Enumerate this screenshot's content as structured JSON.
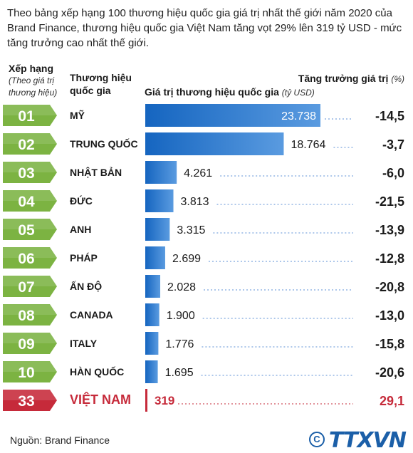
{
  "intro": "Theo bảng xếp hạng 100 thương hiệu quốc gia giá trị nhất thế giới năm 2020 của Brand Finance, thương hiệu quốc gia Việt Nam tăng vọt 29% lên 319 tỷ USD - mức tăng trưởng cao nhất thế giới.",
  "headers": {
    "rank_title": "Xếp hạng",
    "rank_sub": "(Theo giá trị thương hiệu)",
    "brand_title": "Thương hiệu quốc gia",
    "value_title": "Giá trị thương hiệu quốc gia",
    "value_unit": "(tỷ USD)",
    "growth_title": "Tăng trưởng giá trị",
    "growth_unit": "(%)"
  },
  "source": "Nguồn: Brand Finance",
  "logo": {
    "copyright": "C",
    "word": "TTXVN"
  },
  "colors": {
    "rank_green": "#7cb342",
    "rank_green_dark": "#558b2f",
    "rank_red": "#c62a3a",
    "bar_blue": "#1565c0",
    "bar_blue_light": "#5a9be0",
    "highlight_red": "#c62a3a"
  },
  "chart_data": {
    "type": "bar",
    "orientation": "horizontal",
    "rows": [
      {
        "rank": "01",
        "country": "MỸ",
        "value": 23738,
        "value_label": "23.738",
        "growth": "-14,5"
      },
      {
        "rank": "02",
        "country": "TRUNG QUỐC",
        "value": 18764,
        "value_label": "18.764",
        "growth": "-3,7"
      },
      {
        "rank": "03",
        "country": "NHẬT BẢN",
        "value": 4261,
        "value_label": "4.261",
        "growth": "-6,0"
      },
      {
        "rank": "04",
        "country": "ĐỨC",
        "value": 3813,
        "value_label": "3.813",
        "growth": "-21,5"
      },
      {
        "rank": "05",
        "country": "ANH",
        "value": 3315,
        "value_label": "3.315",
        "growth": "-13,9"
      },
      {
        "rank": "06",
        "country": "PHÁP",
        "value": 2699,
        "value_label": "2.699",
        "growth": "-12,8"
      },
      {
        "rank": "07",
        "country": "ẤN ĐỘ",
        "value": 2028,
        "value_label": "2.028",
        "growth": "-20,8"
      },
      {
        "rank": "08",
        "country": "CANADA",
        "value": 1900,
        "value_label": "1.900",
        "growth": "-13,0"
      },
      {
        "rank": "09",
        "country": "ITALY",
        "value": 1776,
        "value_label": "1.776",
        "growth": "-15,8"
      },
      {
        "rank": "10",
        "country": "HÀN QUỐC",
        "value": 1695,
        "value_label": "1.695",
        "growth": "-20,6"
      },
      {
        "rank": "33",
        "country": "VIỆT NAM",
        "value": 319,
        "value_label": "319",
        "growth": "29,1",
        "highlight": true
      }
    ]
  }
}
